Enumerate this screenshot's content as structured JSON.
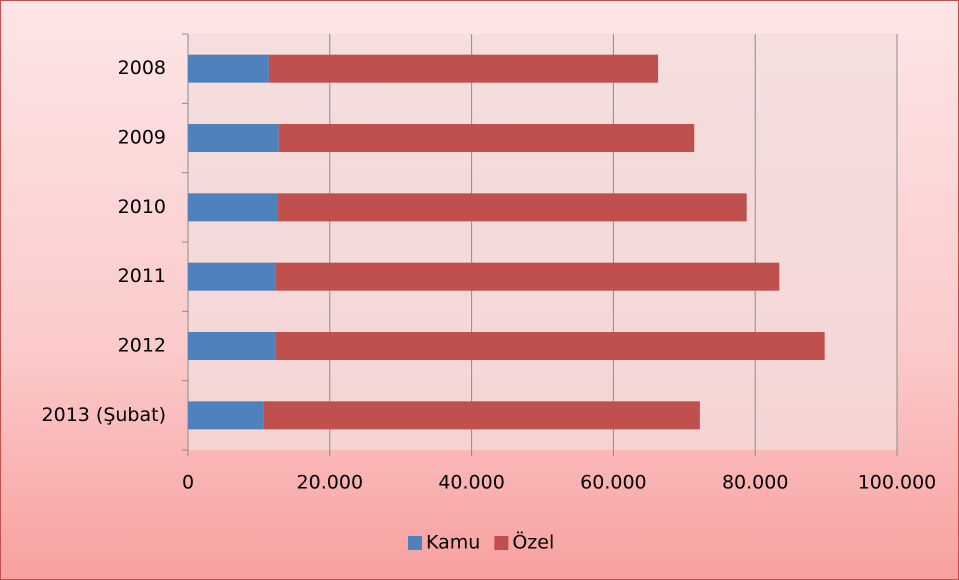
{
  "chart_data": {
    "type": "stacked_barh",
    "categories": [
      "2008",
      "2009",
      "2010",
      "2011",
      "2012",
      "2013 (Şubat)"
    ],
    "series": [
      {
        "name": "Kamu",
        "color": "#4f81bd",
        "values": [
          11400,
          12800,
          12700,
          12400,
          12400,
          10700
        ]
      },
      {
        "name": "Özel",
        "color": "#c0504d",
        "values": [
          54900,
          58600,
          66100,
          71000,
          77400,
          61500
        ]
      }
    ],
    "xlim": [
      0,
      100000
    ],
    "xticks": [
      0,
      {
        "value": 20000,
        "label": "20.000"
      },
      {
        "value": 40000,
        "label": "40.000"
      },
      {
        "value": 60000,
        "label": "60.000"
      },
      {
        "value": 80000,
        "label": "80.000"
      },
      {
        "value": 100000,
        "label": "100.000"
      }
    ],
    "grid": true,
    "legend": "bottom"
  }
}
